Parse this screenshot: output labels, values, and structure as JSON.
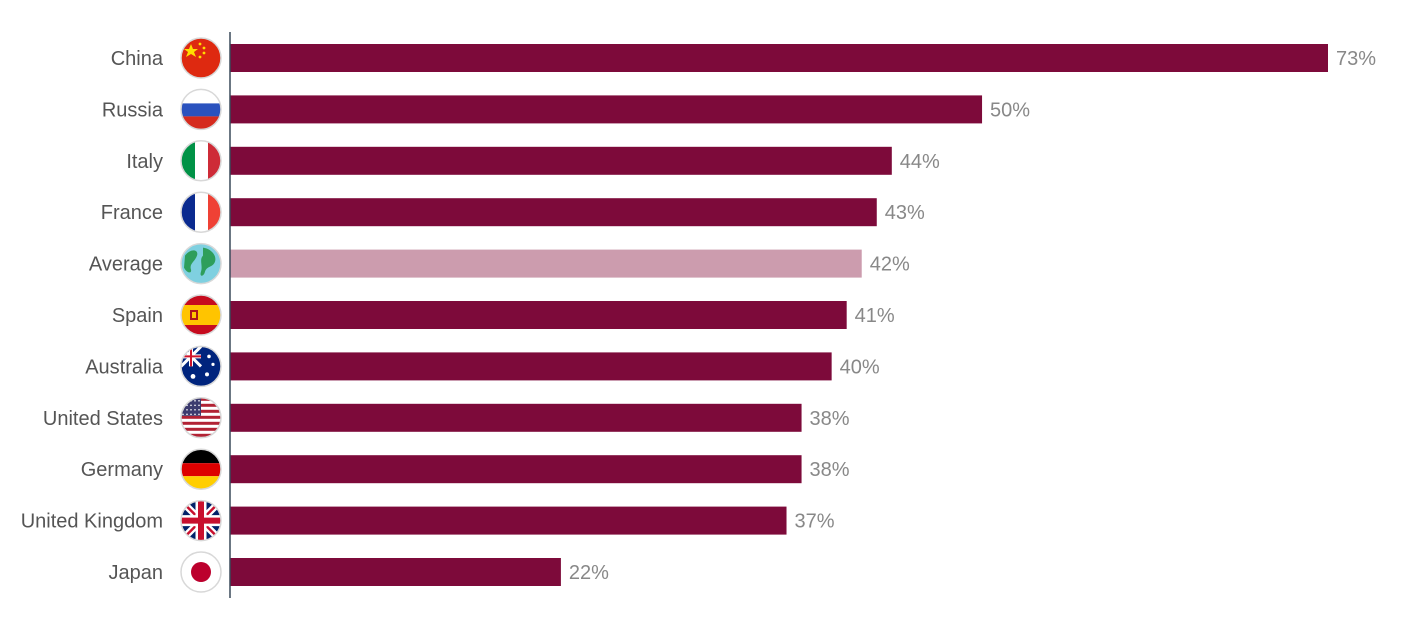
{
  "chart_data": {
    "type": "bar",
    "orientation": "horizontal",
    "categories": [
      "China",
      "Russia",
      "Italy",
      "France",
      "Average",
      "Spain",
      "Australia",
      "United States",
      "Germany",
      "United Kingdom",
      "Japan"
    ],
    "values": [
      73,
      50,
      44,
      43,
      42,
      41,
      40,
      38,
      38,
      37,
      22
    ],
    "value_labels": [
      "73%",
      "50%",
      "44%",
      "43%",
      "42%",
      "41%",
      "40%",
      "38%",
      "38%",
      "37%",
      "22%"
    ],
    "icons": [
      "flag-china-icon",
      "flag-russia-icon",
      "flag-italy-icon",
      "flag-france-icon",
      "globe-icon",
      "flag-spain-icon",
      "flag-australia-icon",
      "flag-usa-icon",
      "flag-germany-icon",
      "flag-uk-icon",
      "flag-japan-icon"
    ],
    "highlight_category": "Average",
    "xlim": [
      0,
      73
    ],
    "grid": false,
    "colors": {
      "bar": "#7d0a3a",
      "highlight": "#cc9cae",
      "axis": "#3a4a5a"
    }
  }
}
